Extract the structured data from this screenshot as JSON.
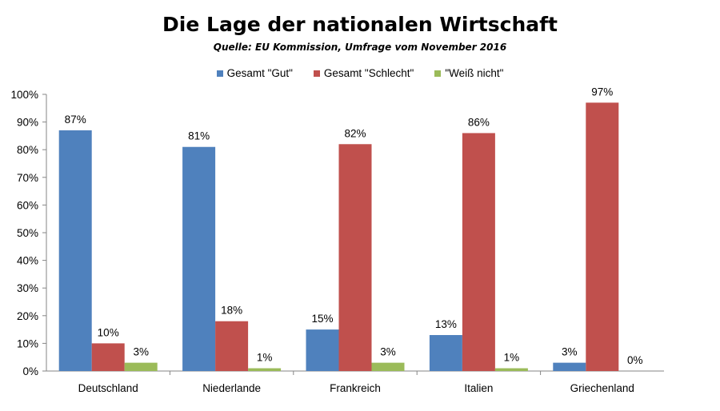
{
  "chart_data": {
    "type": "bar",
    "title": "Die Lage der nationalen Wirtschaft",
    "subtitle": "Quelle: EU Kommission, Umfrage vom November 2016",
    "categories": [
      "Deutschland",
      "Niederlande",
      "Frankreich",
      "Italien",
      "Griechenland"
    ],
    "series": [
      {
        "name": "Gesamt \"Gut\"",
        "color": "#4F81BD",
        "values": [
          87,
          81,
          15,
          13,
          3
        ]
      },
      {
        "name": "Gesamt \"Schlecht\"",
        "color": "#C0504D",
        "values": [
          10,
          18,
          82,
          86,
          97
        ]
      },
      {
        "name": "\"Weiß nicht\"",
        "color": "#9BBB59",
        "values": [
          3,
          1,
          3,
          1,
          0
        ]
      }
    ],
    "ylim": [
      0,
      100
    ],
    "yticks": [
      0,
      10,
      20,
      30,
      40,
      50,
      60,
      70,
      80,
      90,
      100
    ],
    "value_suffix": "%",
    "xlabel": "",
    "ylabel": "",
    "grid": false,
    "legend_position": "top"
  }
}
